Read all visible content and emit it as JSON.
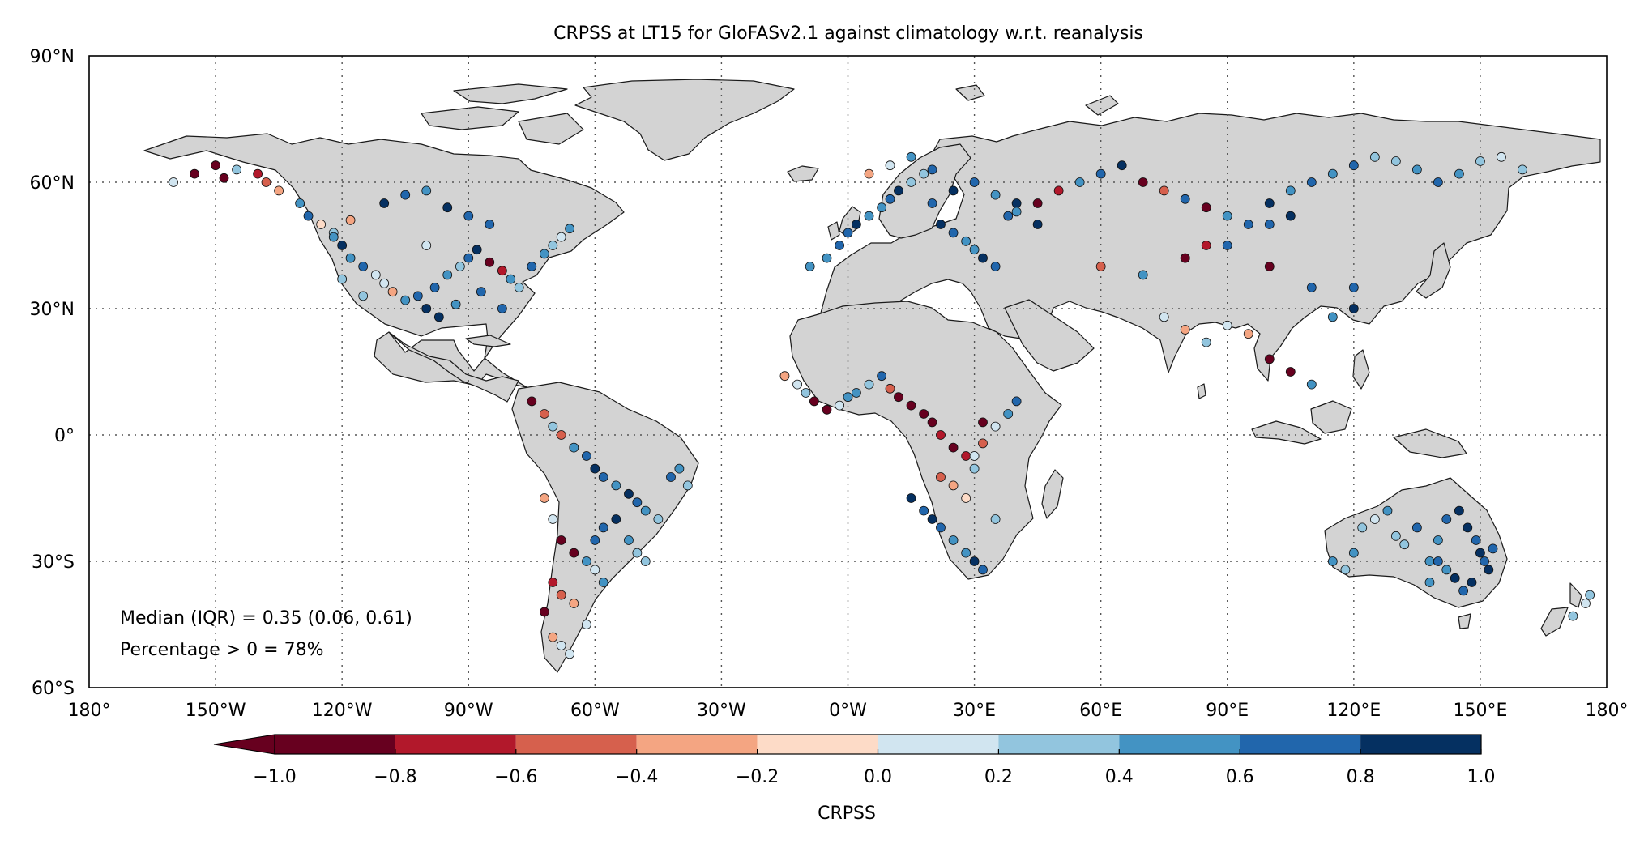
{
  "title": "CRPSS at LT15 for GloFASv2.1 against climatology w.r.t. reanalysis",
  "lat_ticks": [
    "90°N",
    "60°N",
    "30°N",
    "0°",
    "30°S",
    "60°S"
  ],
  "lon_ticks": [
    "180°",
    "150°W",
    "120°W",
    "90°W",
    "60°W",
    "30°W",
    "0°W",
    "30°E",
    "60°E",
    "90°E",
    "120°E",
    "150°E",
    "180°"
  ],
  "extent": {
    "lon": [
      -180,
      180
    ],
    "lat": [
      -60,
      90
    ]
  },
  "gridlines": true,
  "stats": {
    "median_line": "Median (IQR) = 0.35 (0.06, 0.61)",
    "percentage_line": "Percentage > 0 = 78%"
  },
  "colorbar": {
    "label": "CRPSS",
    "extend": "min",
    "boundaries": [
      -1.0,
      -0.8,
      -0.6,
      -0.4,
      -0.2,
      0.0,
      0.2,
      0.4,
      0.6,
      0.8,
      1.0
    ],
    "tick_labels": [
      "−1.0",
      "−0.8",
      "−0.6",
      "−0.4",
      "−0.2",
      "0.0",
      "0.2",
      "0.4",
      "0.6",
      "0.8",
      "1.0"
    ],
    "colors": [
      "#67001f",
      "#b2182b",
      "#d6604d",
      "#f4a582",
      "#fddbc7",
      "#d1e5f0",
      "#92c5de",
      "#4393c3",
      "#2166ac",
      "#053061"
    ]
  },
  "colors": {
    "land": "#d3d3d3",
    "coast": "#1a1a1a",
    "ocean": "#ffffff"
  },
  "chart_data": {
    "type": "scatter",
    "title": "CRPSS at LT15 for GloFASv2.1 against climatology w.r.t. reanalysis",
    "xlabel": "",
    "ylabel": "",
    "xlim": [
      -180,
      180
    ],
    "ylim": [
      -60,
      90
    ],
    "color_variable": "CRPSS",
    "series": [
      {
        "region": "north_america",
        "lon": [
          -160,
          -155,
          -150,
          -148,
          -145,
          -140,
          -138,
          -135,
          -130,
          -128,
          -125,
          -122,
          -120,
          -118,
          -115,
          -112,
          -110,
          -108,
          -105,
          -102,
          -100,
          -98,
          -95,
          -92,
          -90,
          -88,
          -85,
          -82,
          -80,
          -78,
          -75,
          -72,
          -70,
          -68,
          -66,
          -110,
          -105,
          -100,
          -95,
          -90,
          -85,
          -120,
          -115,
          -82,
          -97,
          -93,
          -87,
          -122,
          -118,
          -100
        ],
        "lat": [
          60,
          62,
          64,
          61,
          63,
          62,
          60,
          58,
          55,
          52,
          50,
          48,
          45,
          42,
          40,
          38,
          36,
          34,
          32,
          33,
          30,
          35,
          38,
          40,
          42,
          44,
          41,
          39,
          37,
          35,
          40,
          43,
          45,
          47,
          49,
          55,
          57,
          58,
          54,
          52,
          50,
          37,
          33,
          30,
          28,
          31,
          34,
          47,
          51,
          45
        ],
        "crpss": [
          0.2,
          -0.8,
          -1.0,
          -0.9,
          0.4,
          -0.7,
          -0.5,
          -0.3,
          0.6,
          0.8,
          -0.1,
          0.3,
          0.9,
          0.5,
          0.7,
          0.2,
          0.1,
          -0.2,
          0.6,
          0.8,
          0.9,
          0.7,
          0.5,
          0.3,
          0.8,
          0.9,
          -0.9,
          -0.7,
          0.6,
          0.4,
          0.7,
          0.5,
          0.3,
          0.2,
          0.5,
          0.9,
          0.8,
          0.6,
          0.9,
          0.7,
          0.8,
          0.3,
          0.4,
          0.8,
          0.9,
          0.5,
          0.7,
          0.6,
          -0.3,
          0.2
        ]
      },
      {
        "region": "south_america",
        "lon": [
          -75,
          -72,
          -70,
          -68,
          -65,
          -62,
          -60,
          -58,
          -55,
          -52,
          -50,
          -48,
          -45,
          -42,
          -40,
          -38,
          -72,
          -70,
          -68,
          -65,
          -62,
          -60,
          -58,
          -55,
          -52,
          -50,
          -48,
          -70,
          -68,
          -65,
          -62,
          -60,
          -58,
          -72,
          -70,
          -68,
          -66
        ],
        "lat": [
          8,
          5,
          2,
          0,
          -3,
          -5,
          -8,
          -10,
          -12,
          -14,
          -16,
          -18,
          -20,
          -10,
          -8,
          -12,
          -15,
          -20,
          -25,
          -28,
          -30,
          -25,
          -22,
          -20,
          -25,
          -28,
          -30,
          -35,
          -38,
          -40,
          -45,
          -32,
          -35,
          -42,
          -48,
          -50,
          -52
        ],
        "crpss": [
          -0.9,
          -0.5,
          0.3,
          -0.4,
          0.6,
          0.8,
          0.9,
          0.7,
          0.5,
          0.9,
          0.8,
          0.6,
          0.4,
          0.7,
          0.5,
          0.3,
          -0.3,
          0.2,
          -1.0,
          -0.9,
          0.6,
          0.8,
          0.7,
          0.9,
          0.5,
          0.4,
          0.3,
          -0.7,
          -0.5,
          -0.2,
          0.1,
          0.2,
          0.6,
          -0.9,
          -0.3,
          0.1,
          0.2
        ]
      },
      {
        "region": "europe",
        "lon": [
          -9,
          -5,
          -2,
          0,
          2,
          5,
          8,
          10,
          12,
          15,
          18,
          20,
          22,
          25,
          28,
          30,
          32,
          35,
          38,
          40,
          5,
          10,
          15,
          20,
          25,
          30,
          35,
          40,
          45
        ],
        "lat": [
          40,
          42,
          45,
          48,
          50,
          52,
          54,
          56,
          58,
          60,
          62,
          55,
          50,
          48,
          46,
          44,
          42,
          40,
          52,
          55,
          62,
          64,
          66,
          63,
          58,
          60,
          57,
          53,
          50
        ],
        "crpss": [
          0.6,
          0.5,
          0.7,
          0.8,
          0.9,
          0.6,
          0.5,
          0.8,
          0.9,
          0.4,
          0.3,
          0.7,
          0.9,
          0.8,
          0.6,
          0.5,
          0.9,
          0.7,
          0.8,
          0.9,
          -0.2,
          0.1,
          0.6,
          0.8,
          0.9,
          0.7,
          0.6,
          0.5,
          0.9
        ]
      },
      {
        "region": "africa",
        "lon": [
          -15,
          -12,
          -10,
          -8,
          -5,
          -2,
          0,
          2,
          5,
          8,
          10,
          12,
          15,
          18,
          20,
          22,
          25,
          28,
          30,
          32,
          35,
          38,
          40,
          15,
          18,
          20,
          22,
          25,
          28,
          30,
          32,
          35,
          22,
          25,
          28,
          30,
          32
        ],
        "lat": [
          14,
          12,
          10,
          8,
          6,
          7,
          9,
          10,
          12,
          14,
          11,
          9,
          7,
          5,
          3,
          0,
          -3,
          -5,
          -8,
          -2,
          2,
          5,
          8,
          -15,
          -18,
          -20,
          -22,
          -25,
          -28,
          -30,
          -32,
          -20,
          -10,
          -12,
          -15,
          -5,
          3
        ],
        "crpss": [
          -0.2,
          0.1,
          0.3,
          -0.9,
          -1.0,
          0.2,
          0.5,
          0.6,
          0.3,
          0.8,
          -0.5,
          -0.8,
          -0.9,
          -1.0,
          -0.9,
          -0.7,
          -0.8,
          -0.6,
          0.3,
          -0.4,
          0.2,
          0.5,
          0.7,
          0.9,
          0.8,
          0.9,
          0.7,
          0.6,
          0.5,
          0.9,
          0.8,
          0.4,
          -0.5,
          -0.3,
          -0.1,
          0.2,
          -0.9
        ]
      },
      {
        "region": "asia",
        "lon": [
          45,
          50,
          55,
          60,
          65,
          70,
          75,
          80,
          85,
          90,
          95,
          100,
          105,
          110,
          115,
          120,
          125,
          130,
          135,
          140,
          145,
          150,
          155,
          160,
          60,
          70,
          80,
          90,
          100,
          110,
          120,
          75,
          80,
          85,
          90,
          95,
          100,
          105,
          110,
          115,
          120,
          80,
          85,
          100,
          105
        ],
        "lat": [
          55,
          58,
          60,
          62,
          64,
          60,
          58,
          56,
          54,
          52,
          50,
          55,
          58,
          60,
          62,
          64,
          66,
          65,
          63,
          60,
          62,
          65,
          66,
          63,
          40,
          38,
          42,
          45,
          40,
          35,
          30,
          28,
          25,
          22,
          26,
          24,
          18,
          15,
          12,
          28,
          35,
          42,
          45,
          50,
          52
        ],
        "crpss": [
          -0.9,
          -0.7,
          0.6,
          0.8,
          0.9,
          -0.8,
          -0.5,
          0.7,
          -0.9,
          0.5,
          0.8,
          0.9,
          0.6,
          0.7,
          0.5,
          0.8,
          0.4,
          0.3,
          0.6,
          0.7,
          0.5,
          0.3,
          0.2,
          0.4,
          -0.4,
          0.5,
          -0.6,
          0.7,
          -0.9,
          0.8,
          0.9,
          0.2,
          -0.2,
          0.3,
          0.1,
          -0.3,
          -0.9,
          -1.0,
          0.5,
          0.6,
          0.8,
          -0.8,
          -0.7,
          0.7,
          0.9
        ]
      },
      {
        "region": "australia",
        "lon": [
          115,
          118,
          120,
          122,
          125,
          128,
          130,
          132,
          135,
          138,
          140,
          142,
          145,
          147,
          149,
          150,
          151,
          152,
          153,
          148,
          146,
          144,
          142,
          140,
          138
        ],
        "lat": [
          -30,
          -32,
          -28,
          -22,
          -20,
          -18,
          -24,
          -26,
          -22,
          -30,
          -25,
          -20,
          -18,
          -22,
          -25,
          -28,
          -30,
          -32,
          -27,
          -35,
          -37,
          -34,
          -32,
          -30,
          -35
        ],
        "crpss": [
          0.5,
          0.4,
          0.6,
          0.3,
          0.2,
          0.5,
          0.4,
          0.3,
          0.7,
          0.5,
          0.6,
          0.8,
          0.9,
          0.9,
          0.8,
          0.9,
          0.7,
          0.9,
          0.8,
          0.9,
          0.7,
          0.9,
          0.6,
          0.8,
          0.5
        ]
      },
      {
        "region": "new_zealand",
        "lon": [
          172,
          175,
          176
        ],
        "lat": [
          -43,
          -40,
          -38
        ],
        "crpss": [
          0.3,
          0.2,
          0.4
        ]
      }
    ]
  }
}
